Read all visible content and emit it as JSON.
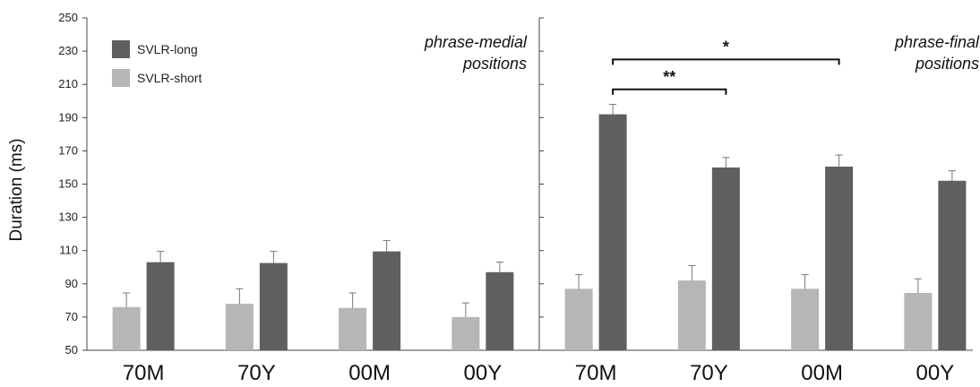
{
  "chart_data": {
    "type": "bar",
    "ylabel": "Duration (ms)",
    "ylim": [
      50,
      250
    ],
    "yticks": [
      50,
      70,
      90,
      110,
      130,
      150,
      170,
      190,
      210,
      230,
      250
    ],
    "grid": false,
    "legend_position": "top-left",
    "categories": [
      "70M",
      "70Y",
      "00M",
      "00Y"
    ],
    "colors": {
      "long": "#5f5f5f",
      "short": "#b6b6b6"
    },
    "series": [
      {
        "name": "SVLR-long",
        "key": "long"
      },
      {
        "name": "SVLR-short",
        "key": "short"
      }
    ],
    "panels": [
      {
        "label_lines": [
          "phrase-medial",
          "positions"
        ],
        "long": [
          103,
          102.5,
          109.5,
          97
        ],
        "long_err": [
          6.5,
          7,
          6.5,
          6
        ],
        "short": [
          76,
          78,
          75.5,
          70
        ],
        "short_err": [
          8.5,
          9,
          9,
          8.5
        ]
      },
      {
        "label_lines": [
          "phrase-final",
          "positions"
        ],
        "long": [
          192,
          160,
          160.5,
          152
        ],
        "long_err": [
          6,
          6,
          7,
          6
        ],
        "short": [
          87,
          92,
          87,
          84.5
        ],
        "short_err": [
          8.5,
          9,
          8.5,
          8.5
        ]
      }
    ],
    "annotations": [
      {
        "panel": 1,
        "from": 0,
        "to": 2,
        "y": 225,
        "label": "*"
      },
      {
        "panel": 1,
        "from": 0,
        "to": 1,
        "y": 207,
        "label": "**"
      }
    ]
  }
}
